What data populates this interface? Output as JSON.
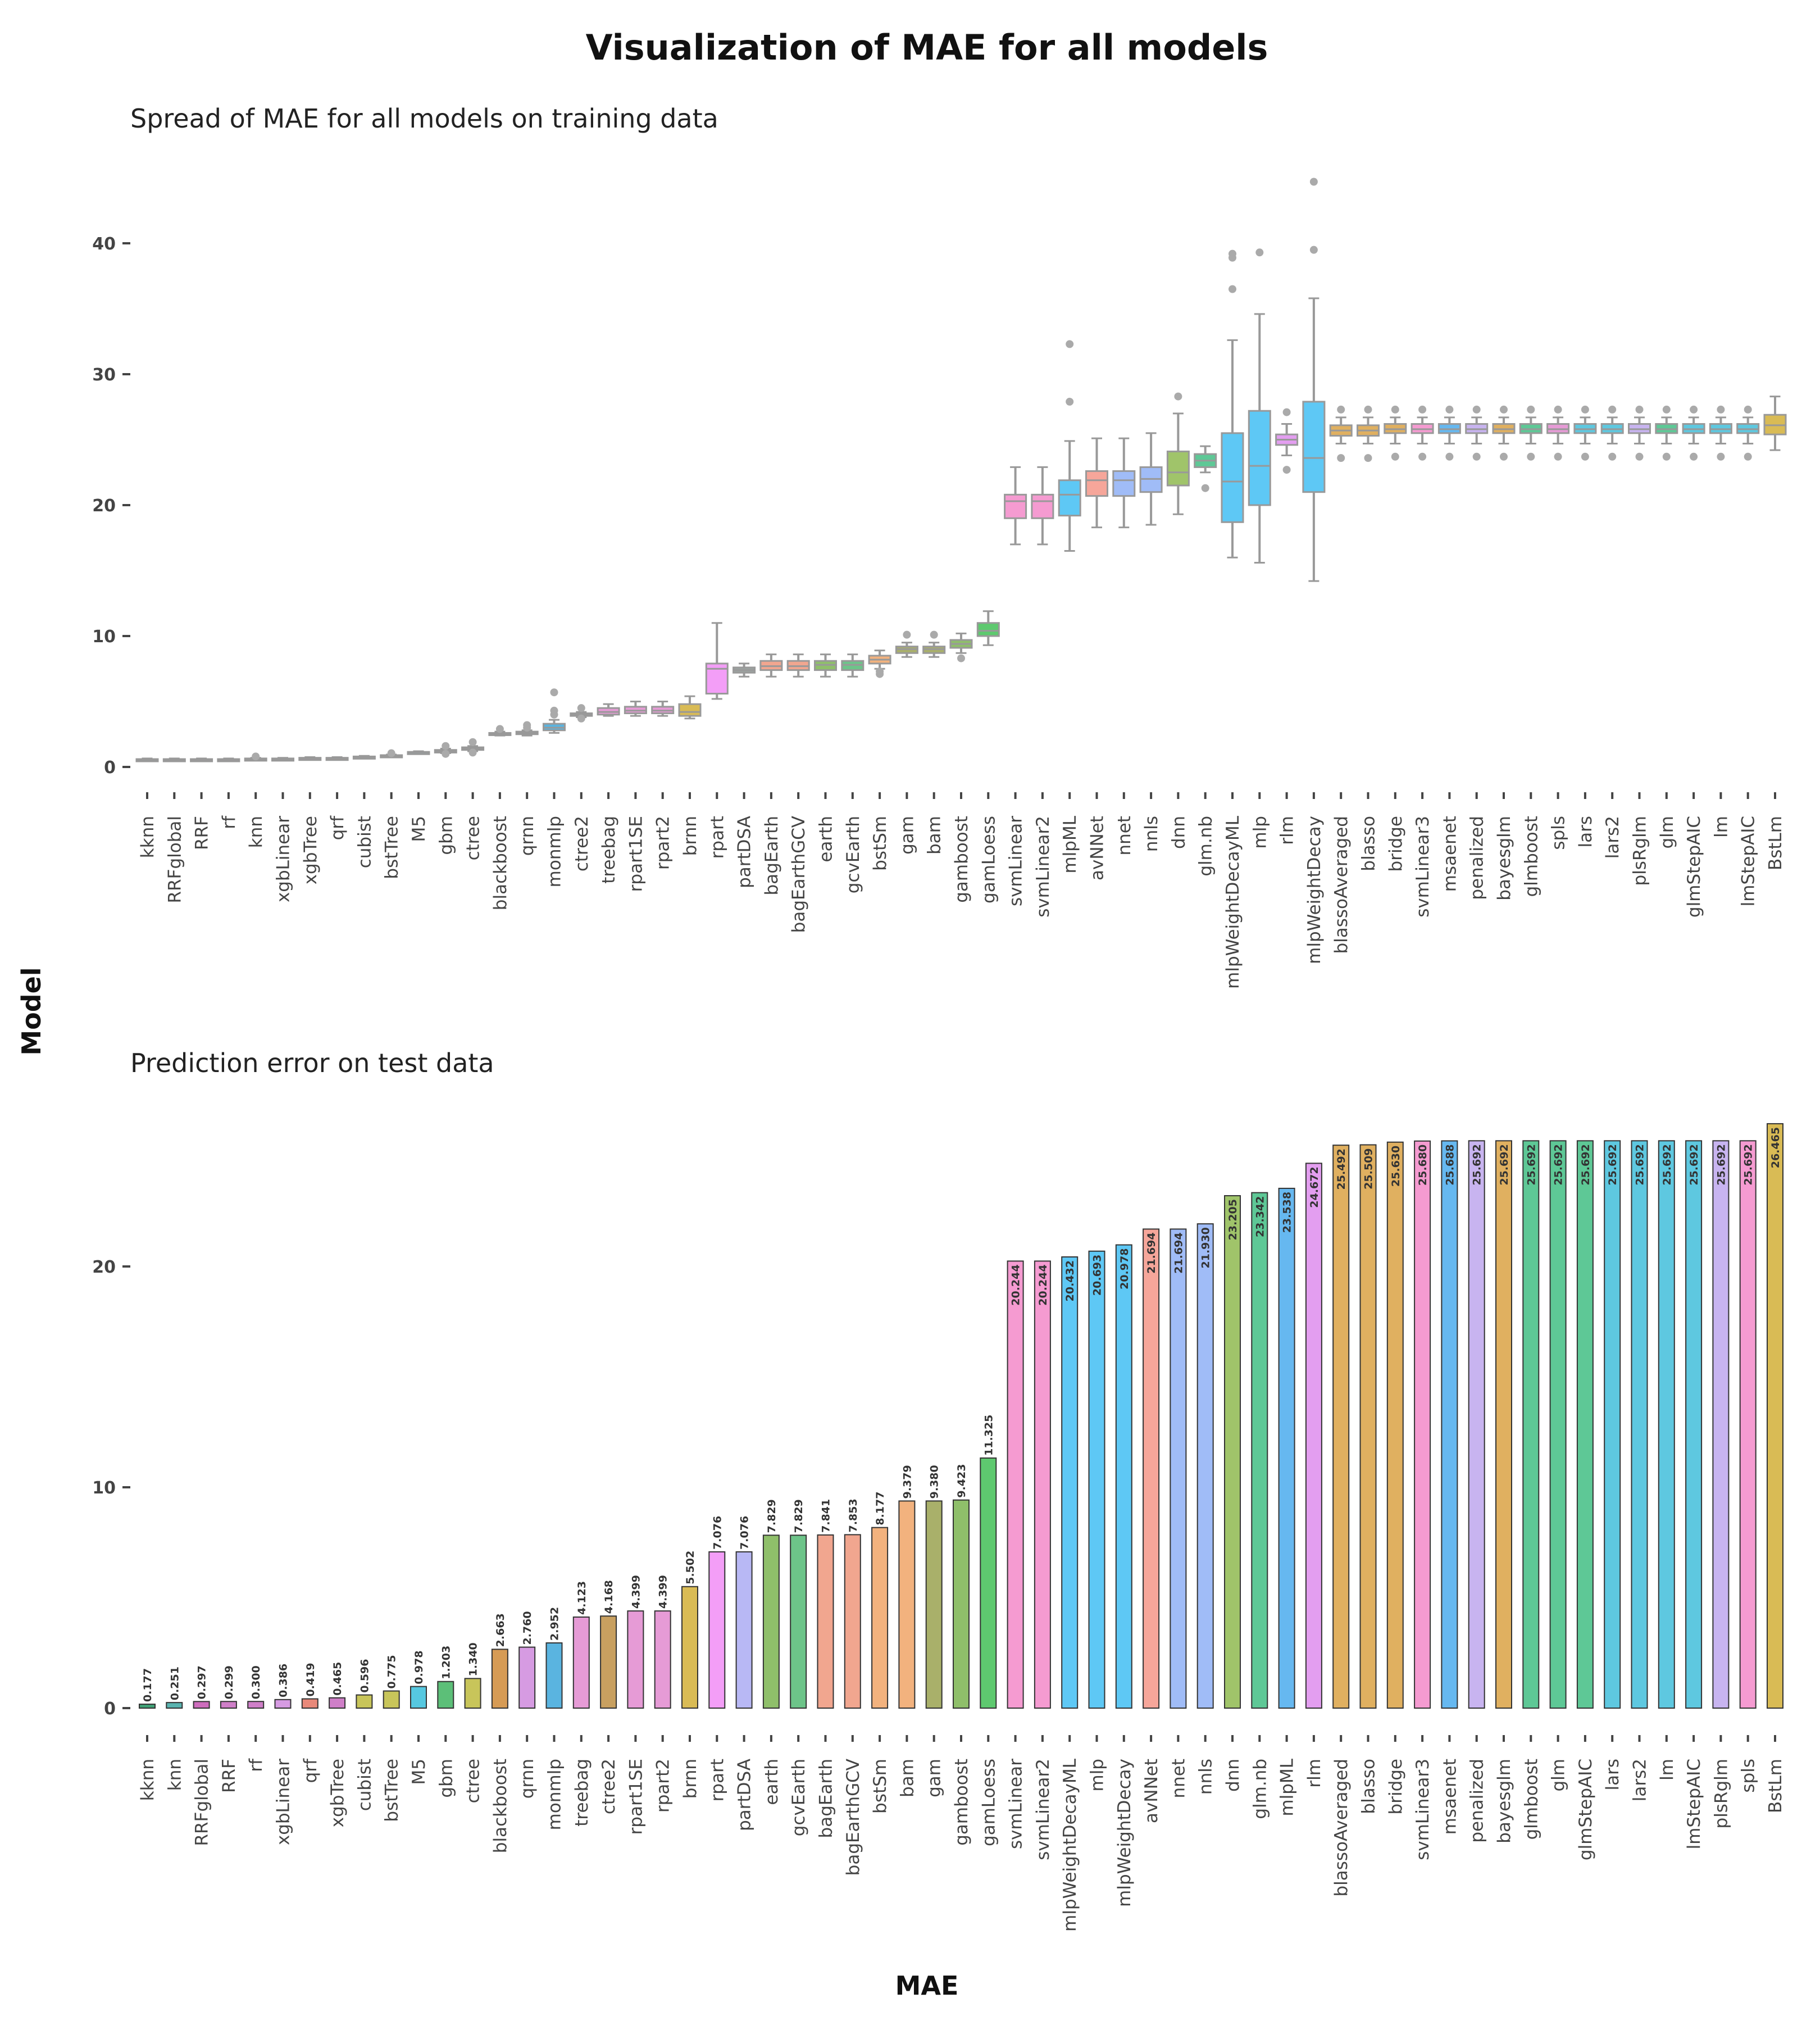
{
  "title": "Visualization of MAE for all models",
  "xlabel": "MAE",
  "ylabel": "Model",
  "chart_data": [
    {
      "type": "box",
      "title": "Spread of MAE for all models on training data",
      "ylim": [
        -2,
        47
      ],
      "yticks": [
        0,
        10,
        20,
        30,
        40
      ],
      "grid": false,
      "categories": [
        "kknn",
        "RRFglobal",
        "RRF",
        "rf",
        "knn",
        "xgbLinear",
        "xgbTree",
        "qrf",
        "cubist",
        "bstTree",
        "M5",
        "gbm",
        "ctree",
        "blackboost",
        "qrnn",
        "monmlp",
        "ctree2",
        "treebag",
        "rpart1SE",
        "rpart2",
        "brnn",
        "rpart",
        "partDSA",
        "bagEarth",
        "bagEarthGCV",
        "earth",
        "gcvEarth",
        "bstSm",
        "gam",
        "bam",
        "gamboost",
        "gamLoess",
        "svmLinear",
        "svmLinear2",
        "mlpML",
        "avNNet",
        "nnet",
        "nnls",
        "dnn",
        "glm.nb",
        "mlpWeightDecayML",
        "mlp",
        "rlm",
        "mlpWeightDecay",
        "blassoAveraged",
        "blasso",
        "bridge",
        "svmLinear3",
        "msaenet",
        "penalized",
        "bayesglm",
        "glmboost",
        "spls",
        "lars",
        "lars2",
        "plsRglm",
        "glm",
        "glmStepAIC",
        "lm",
        "lmStepAIC",
        "BstLm"
      ],
      "colors": [
        "#3fa276",
        "#5ab4b0",
        "#ce6dbd",
        "#cf7fc8",
        "#5ab4b0",
        "#d69be2",
        "#cf7fc8",
        "#e8897a",
        "#c8c55a",
        "#c8c55a",
        "#56c8e0",
        "#5cbf78",
        "#c8c55a",
        "#d69b55",
        "#d69be2",
        "#5ab4e0",
        "#c8a060",
        "#e69bd6",
        "#e69bd6",
        "#e69bd6",
        "#d9bb55",
        "#f39ef7",
        "#9ca3a0",
        "#f1a68f",
        "#f1a68f",
        "#8fbf6a",
        "#6dc489",
        "#f2b27e",
        "#a9b06a",
        "#a9b06a",
        "#8fbf6a",
        "#5ec96f",
        "#f59bd1",
        "#f59bd1",
        "#5ec8f5",
        "#f6a69a",
        "#a0bcf7",
        "#a0bcf7",
        "#a0c46a",
        "#5ec896",
        "#5ec8f5",
        "#5ec8f5",
        "#e39ef0",
        "#5ec8f5",
        "#e0b060",
        "#e0b060",
        "#e0b060",
        "#f59bd1",
        "#66b8f0",
        "#c8b4f0",
        "#e0b060",
        "#5ec896",
        "#e69bd6",
        "#5ec8e0",
        "#5ec8e0",
        "#c8b4f0",
        "#5ec896",
        "#5ec8e0",
        "#5ec8e0",
        "#5ec8e0",
        "#d9bb55"
      ],
      "boxes": [
        {
          "min": 0.45,
          "q1": 0.5,
          "median": 0.55,
          "q3": 0.6,
          "max": 0.65,
          "outliers": []
        },
        {
          "min": 0.45,
          "q1": 0.5,
          "median": 0.55,
          "q3": 0.6,
          "max": 0.65,
          "outliers": []
        },
        {
          "min": 0.45,
          "q1": 0.5,
          "median": 0.55,
          "q3": 0.6,
          "max": 0.65,
          "outliers": []
        },
        {
          "min": 0.45,
          "q1": 0.5,
          "median": 0.55,
          "q3": 0.6,
          "max": 0.65,
          "outliers": []
        },
        {
          "min": 0.5,
          "q1": 0.55,
          "median": 0.6,
          "q3": 0.65,
          "max": 0.7,
          "outliers": [
            0.8
          ]
        },
        {
          "min": 0.5,
          "q1": 0.55,
          "median": 0.6,
          "q3": 0.65,
          "max": 0.7,
          "outliers": []
        },
        {
          "min": 0.55,
          "q1": 0.6,
          "median": 0.65,
          "q3": 0.7,
          "max": 0.75,
          "outliers": []
        },
        {
          "min": 0.55,
          "q1": 0.6,
          "median": 0.65,
          "q3": 0.7,
          "max": 0.75,
          "outliers": []
        },
        {
          "min": 0.65,
          "q1": 0.7,
          "median": 0.75,
          "q3": 0.8,
          "max": 0.85,
          "outliers": []
        },
        {
          "min": 0.75,
          "q1": 0.8,
          "median": 0.85,
          "q3": 0.9,
          "max": 0.95,
          "outliers": [
            1.05
          ]
        },
        {
          "min": 1.0,
          "q1": 1.05,
          "median": 1.1,
          "q3": 1.15,
          "max": 1.2,
          "outliers": []
        },
        {
          "min": 1.05,
          "q1": 1.1,
          "median": 1.2,
          "q3": 1.3,
          "max": 1.4,
          "outliers": [
            1.0,
            1.6
          ]
        },
        {
          "min": 1.2,
          "q1": 1.3,
          "median": 1.4,
          "q3": 1.5,
          "max": 1.6,
          "outliers": [
            1.1,
            1.9
          ]
        },
        {
          "min": 2.4,
          "q1": 2.45,
          "median": 2.5,
          "q3": 2.6,
          "max": 2.7,
          "outliers": [
            2.9
          ]
        },
        {
          "min": 2.4,
          "q1": 2.5,
          "median": 2.6,
          "q3": 2.7,
          "max": 2.8,
          "outliers": [
            3.0,
            3.2
          ]
        },
        {
          "min": 2.6,
          "q1": 2.8,
          "median": 3.0,
          "q3": 3.3,
          "max": 3.6,
          "outliers": [
            4.0,
            4.3,
            5.7
          ]
        },
        {
          "min": 3.8,
          "q1": 3.9,
          "median": 4.0,
          "q3": 4.1,
          "max": 4.2,
          "outliers": [
            3.7,
            4.5
          ]
        },
        {
          "min": 3.9,
          "q1": 4.0,
          "median": 4.2,
          "q3": 4.5,
          "max": 4.8,
          "outliers": []
        },
        {
          "min": 3.9,
          "q1": 4.1,
          "median": 4.3,
          "q3": 4.6,
          "max": 5.0,
          "outliers": []
        },
        {
          "min": 3.9,
          "q1": 4.1,
          "median": 4.3,
          "q3": 4.6,
          "max": 5.0,
          "outliers": []
        },
        {
          "min": 3.7,
          "q1": 3.9,
          "median": 4.2,
          "q3": 4.8,
          "max": 5.4,
          "outliers": []
        },
        {
          "min": 5.2,
          "q1": 5.6,
          "median": 7.5,
          "q3": 7.9,
          "max": 11.0,
          "outliers": []
        },
        {
          "min": 6.9,
          "q1": 7.2,
          "median": 7.4,
          "q3": 7.6,
          "max": 7.9,
          "outliers": []
        },
        {
          "min": 6.9,
          "q1": 7.4,
          "median": 7.7,
          "q3": 8.1,
          "max": 8.6,
          "outliers": []
        },
        {
          "min": 6.9,
          "q1": 7.4,
          "median": 7.7,
          "q3": 8.1,
          "max": 8.6,
          "outliers": []
        },
        {
          "min": 6.9,
          "q1": 7.4,
          "median": 7.8,
          "q3": 8.1,
          "max": 8.6,
          "outliers": []
        },
        {
          "min": 6.9,
          "q1": 7.4,
          "median": 7.8,
          "q3": 8.1,
          "max": 8.6,
          "outliers": []
        },
        {
          "min": 7.5,
          "q1": 7.9,
          "median": 8.2,
          "q3": 8.5,
          "max": 8.9,
          "outliers": [
            7.1,
            7.3
          ]
        },
        {
          "min": 8.4,
          "q1": 8.7,
          "median": 9.0,
          "q3": 9.2,
          "max": 9.5,
          "outliers": [
            10.1
          ]
        },
        {
          "min": 8.4,
          "q1": 8.7,
          "median": 9.0,
          "q3": 9.2,
          "max": 9.5,
          "outliers": [
            10.1
          ]
        },
        {
          "min": 8.7,
          "q1": 9.1,
          "median": 9.4,
          "q3": 9.7,
          "max": 10.2,
          "outliers": [
            8.3
          ]
        },
        {
          "min": 9.3,
          "q1": 10.0,
          "median": 10.4,
          "q3": 11.0,
          "max": 11.9,
          "outliers": []
        },
        {
          "min": 17.0,
          "q1": 19.0,
          "median": 20.3,
          "q3": 20.8,
          "max": 22.9,
          "outliers": []
        },
        {
          "min": 17.0,
          "q1": 19.0,
          "median": 20.3,
          "q3": 20.8,
          "max": 22.9,
          "outliers": []
        },
        {
          "min": 16.5,
          "q1": 19.2,
          "median": 20.8,
          "q3": 21.9,
          "max": 24.9,
          "outliers": [
            27.9,
            32.3
          ]
        },
        {
          "min": 18.3,
          "q1": 20.7,
          "median": 21.9,
          "q3": 22.6,
          "max": 25.1,
          "outliers": []
        },
        {
          "min": 18.3,
          "q1": 20.7,
          "median": 21.9,
          "q3": 22.6,
          "max": 25.1,
          "outliers": []
        },
        {
          "min": 18.5,
          "q1": 21.0,
          "median": 22.0,
          "q3": 22.9,
          "max": 25.5,
          "outliers": []
        },
        {
          "min": 19.3,
          "q1": 21.5,
          "median": 22.5,
          "q3": 24.1,
          "max": 27.0,
          "outliers": [
            28.3
          ]
        },
        {
          "min": 22.5,
          "q1": 22.9,
          "median": 23.4,
          "q3": 23.9,
          "max": 24.5,
          "outliers": [
            21.3
          ]
        },
        {
          "min": 16.0,
          "q1": 18.7,
          "median": 21.8,
          "q3": 25.5,
          "max": 32.6,
          "outliers": [
            36.5,
            38.9,
            39.2
          ]
        },
        {
          "min": 15.6,
          "q1": 20.0,
          "median": 23.0,
          "q3": 27.2,
          "max": 34.6,
          "outliers": [
            39.3
          ]
        },
        {
          "min": 23.8,
          "q1": 24.6,
          "median": 25.0,
          "q3": 25.4,
          "max": 26.2,
          "outliers": [
            22.7,
            27.1
          ]
        },
        {
          "min": 14.2,
          "q1": 21.0,
          "median": 23.6,
          "q3": 27.9,
          "max": 35.8,
          "outliers": [
            39.5,
            44.7
          ]
        },
        {
          "min": 24.7,
          "q1": 25.3,
          "median": 25.7,
          "q3": 26.1,
          "max": 26.7,
          "outliers": [
            23.6,
            27.3
          ]
        },
        {
          "min": 24.7,
          "q1": 25.3,
          "median": 25.7,
          "q3": 26.1,
          "max": 26.7,
          "outliers": [
            23.6,
            27.3
          ]
        },
        {
          "min": 24.7,
          "q1": 25.5,
          "median": 25.8,
          "q3": 26.2,
          "max": 26.7,
          "outliers": [
            23.7,
            27.3
          ]
        },
        {
          "min": 24.7,
          "q1": 25.5,
          "median": 25.8,
          "q3": 26.2,
          "max": 26.7,
          "outliers": [
            23.7,
            27.3
          ]
        },
        {
          "min": 24.7,
          "q1": 25.5,
          "median": 25.8,
          "q3": 26.2,
          "max": 26.7,
          "outliers": [
            23.7,
            27.3
          ]
        },
        {
          "min": 24.7,
          "q1": 25.5,
          "median": 25.8,
          "q3": 26.2,
          "max": 26.7,
          "outliers": [
            23.7,
            27.3
          ]
        },
        {
          "min": 24.7,
          "q1": 25.5,
          "median": 25.8,
          "q3": 26.2,
          "max": 26.7,
          "outliers": [
            23.7,
            27.3
          ]
        },
        {
          "min": 24.7,
          "q1": 25.5,
          "median": 25.8,
          "q3": 26.2,
          "max": 26.7,
          "outliers": [
            23.7,
            27.3
          ]
        },
        {
          "min": 24.7,
          "q1": 25.5,
          "median": 25.8,
          "q3": 26.2,
          "max": 26.7,
          "outliers": [
            23.7,
            27.3
          ]
        },
        {
          "min": 24.7,
          "q1": 25.5,
          "median": 25.8,
          "q3": 26.2,
          "max": 26.7,
          "outliers": [
            23.7,
            27.3
          ]
        },
        {
          "min": 24.7,
          "q1": 25.5,
          "median": 25.8,
          "q3": 26.2,
          "max": 26.7,
          "outliers": [
            23.7,
            27.3
          ]
        },
        {
          "min": 24.7,
          "q1": 25.5,
          "median": 25.8,
          "q3": 26.2,
          "max": 26.7,
          "outliers": [
            23.7,
            27.3
          ]
        },
        {
          "min": 24.7,
          "q1": 25.5,
          "median": 25.8,
          "q3": 26.2,
          "max": 26.7,
          "outliers": [
            23.7,
            27.3
          ]
        },
        {
          "min": 24.7,
          "q1": 25.5,
          "median": 25.8,
          "q3": 26.2,
          "max": 26.7,
          "outliers": [
            23.7,
            27.3
          ]
        },
        {
          "min": 24.7,
          "q1": 25.5,
          "median": 25.8,
          "q3": 26.2,
          "max": 26.7,
          "outliers": [
            23.7,
            27.3
          ]
        },
        {
          "min": 24.7,
          "q1": 25.5,
          "median": 25.8,
          "q3": 26.2,
          "max": 26.7,
          "outliers": [
            23.7,
            27.3
          ]
        },
        {
          "min": 24.2,
          "q1": 25.4,
          "median": 26.1,
          "q3": 26.9,
          "max": 28.3,
          "outliers": []
        }
      ]
    },
    {
      "type": "bar",
      "title": "Prediction error on test data",
      "ylim": [
        -0.6,
        26.5
      ],
      "yticks": [
        0,
        10,
        20
      ],
      "grid": false,
      "categories": [
        "kknn",
        "knn",
        "RRFglobal",
        "RRF",
        "rf",
        "xgbLinear",
        "qrf",
        "xgbTree",
        "cubist",
        "bstTree",
        "M5",
        "gbm",
        "ctree",
        "blackboost",
        "qrnn",
        "monmlp",
        "treebag",
        "ctree2",
        "rpart1SE",
        "rpart2",
        "brnn",
        "rpart",
        "partDSA",
        "earth",
        "gcvEarth",
        "bagEarth",
        "bagEarthGCV",
        "bstSm",
        "bam",
        "gam",
        "gamboost",
        "gamLoess",
        "svmLinear",
        "svmLinear2",
        "mlpWeightDecayML",
        "mlp",
        "mlpWeightDecay",
        "avNNet",
        "nnet",
        "nnls",
        "dnn",
        "glm.nb",
        "mlpML",
        "rlm",
        "blassoAveraged",
        "blasso",
        "bridge",
        "svmLinear3",
        "msaenet",
        "penalized",
        "bayesglm",
        "glmboost",
        "glm",
        "glmStepAIC",
        "lars",
        "lars2",
        "lm",
        "lmStepAIC",
        "plsRglm",
        "spls",
        "BstLm"
      ],
      "values": [
        0.177,
        0.251,
        0.297,
        0.299,
        0.3,
        0.386,
        0.419,
        0.465,
        0.596,
        0.775,
        0.978,
        1.203,
        1.34,
        2.663,
        2.76,
        2.952,
        4.123,
        4.168,
        4.399,
        4.399,
        5.502,
        7.076,
        7.076,
        7.829,
        7.829,
        7.841,
        7.853,
        8.177,
        9.379,
        9.38,
        9.423,
        11.325,
        20.244,
        20.244,
        20.432,
        20.693,
        20.978,
        21.694,
        21.694,
        21.93,
        23.205,
        23.342,
        23.538,
        24.672,
        25.492,
        25.509,
        25.63,
        25.68,
        25.688,
        25.692,
        25.692,
        25.692,
        25.692,
        25.692,
        25.692,
        25.692,
        25.692,
        25.692,
        25.692,
        25.692,
        26.465
      ],
      "labels": [
        "0.177",
        "0.251",
        "0.297",
        "0.299",
        "0.300",
        "0.386",
        "0.419",
        "0.465",
        "0.596",
        "0.775",
        "0.978",
        "1.203",
        "1.340",
        "2.663",
        "2.760",
        "2.952",
        "4.123",
        "4.168",
        "4.399",
        "4.399",
        "5.502",
        "7.076",
        "7.076",
        "7.829",
        "7.829",
        "7.841",
        "7.853",
        "8.177",
        "9.379",
        "9.380",
        "9.423",
        "11.325",
        "20.244",
        "20.244",
        "20.432",
        "20.693",
        "20.978",
        "21.694",
        "21.694",
        "21.930",
        "23.205",
        "23.342",
        "23.538",
        "24.672",
        "25.492",
        "25.509",
        "25.630",
        "25.680",
        "25.688",
        "25.692",
        "25.692",
        "25.692",
        "25.692",
        "25.692",
        "25.692",
        "25.692",
        "25.692",
        "25.692",
        "25.692",
        "25.692",
        "26.465"
      ],
      "colors": [
        "#3fa276",
        "#5ab4b0",
        "#ce6dbd",
        "#cf7fc8",
        "#cf7fc8",
        "#d69be2",
        "#e8897a",
        "#cf7fc8",
        "#c8c55a",
        "#c8c55a",
        "#56c8e0",
        "#5cbf78",
        "#c8c55a",
        "#d69b55",
        "#d69be2",
        "#5ab4e0",
        "#e69bd6",
        "#c8a060",
        "#e69bd6",
        "#e69bd6",
        "#d9bb55",
        "#f39ef7",
        "#b8b8f5",
        "#8fbf6a",
        "#6dc489",
        "#f1a68f",
        "#f1a68f",
        "#f2b27e",
        "#f2b27e",
        "#a9b06a",
        "#8fbf6a",
        "#5ec96f",
        "#f59bd1",
        "#f59bd1",
        "#5ec8f5",
        "#5ec8f5",
        "#5ec8f5",
        "#f6a69a",
        "#a0bcf7",
        "#a0bcf7",
        "#a0c46a",
        "#5ec896",
        "#66b8f0",
        "#e39ef0",
        "#e0b060",
        "#e0b060",
        "#e0b060",
        "#f59bd1",
        "#66b8f0",
        "#c8b4f0",
        "#e0b060",
        "#5ec896",
        "#5ec896",
        "#5ec896",
        "#5ec8e0",
        "#5ec8e0",
        "#5ec8e0",
        "#5ec8e0",
        "#c8b4f0",
        "#f59bd1",
        "#d9bb55"
      ]
    }
  ]
}
